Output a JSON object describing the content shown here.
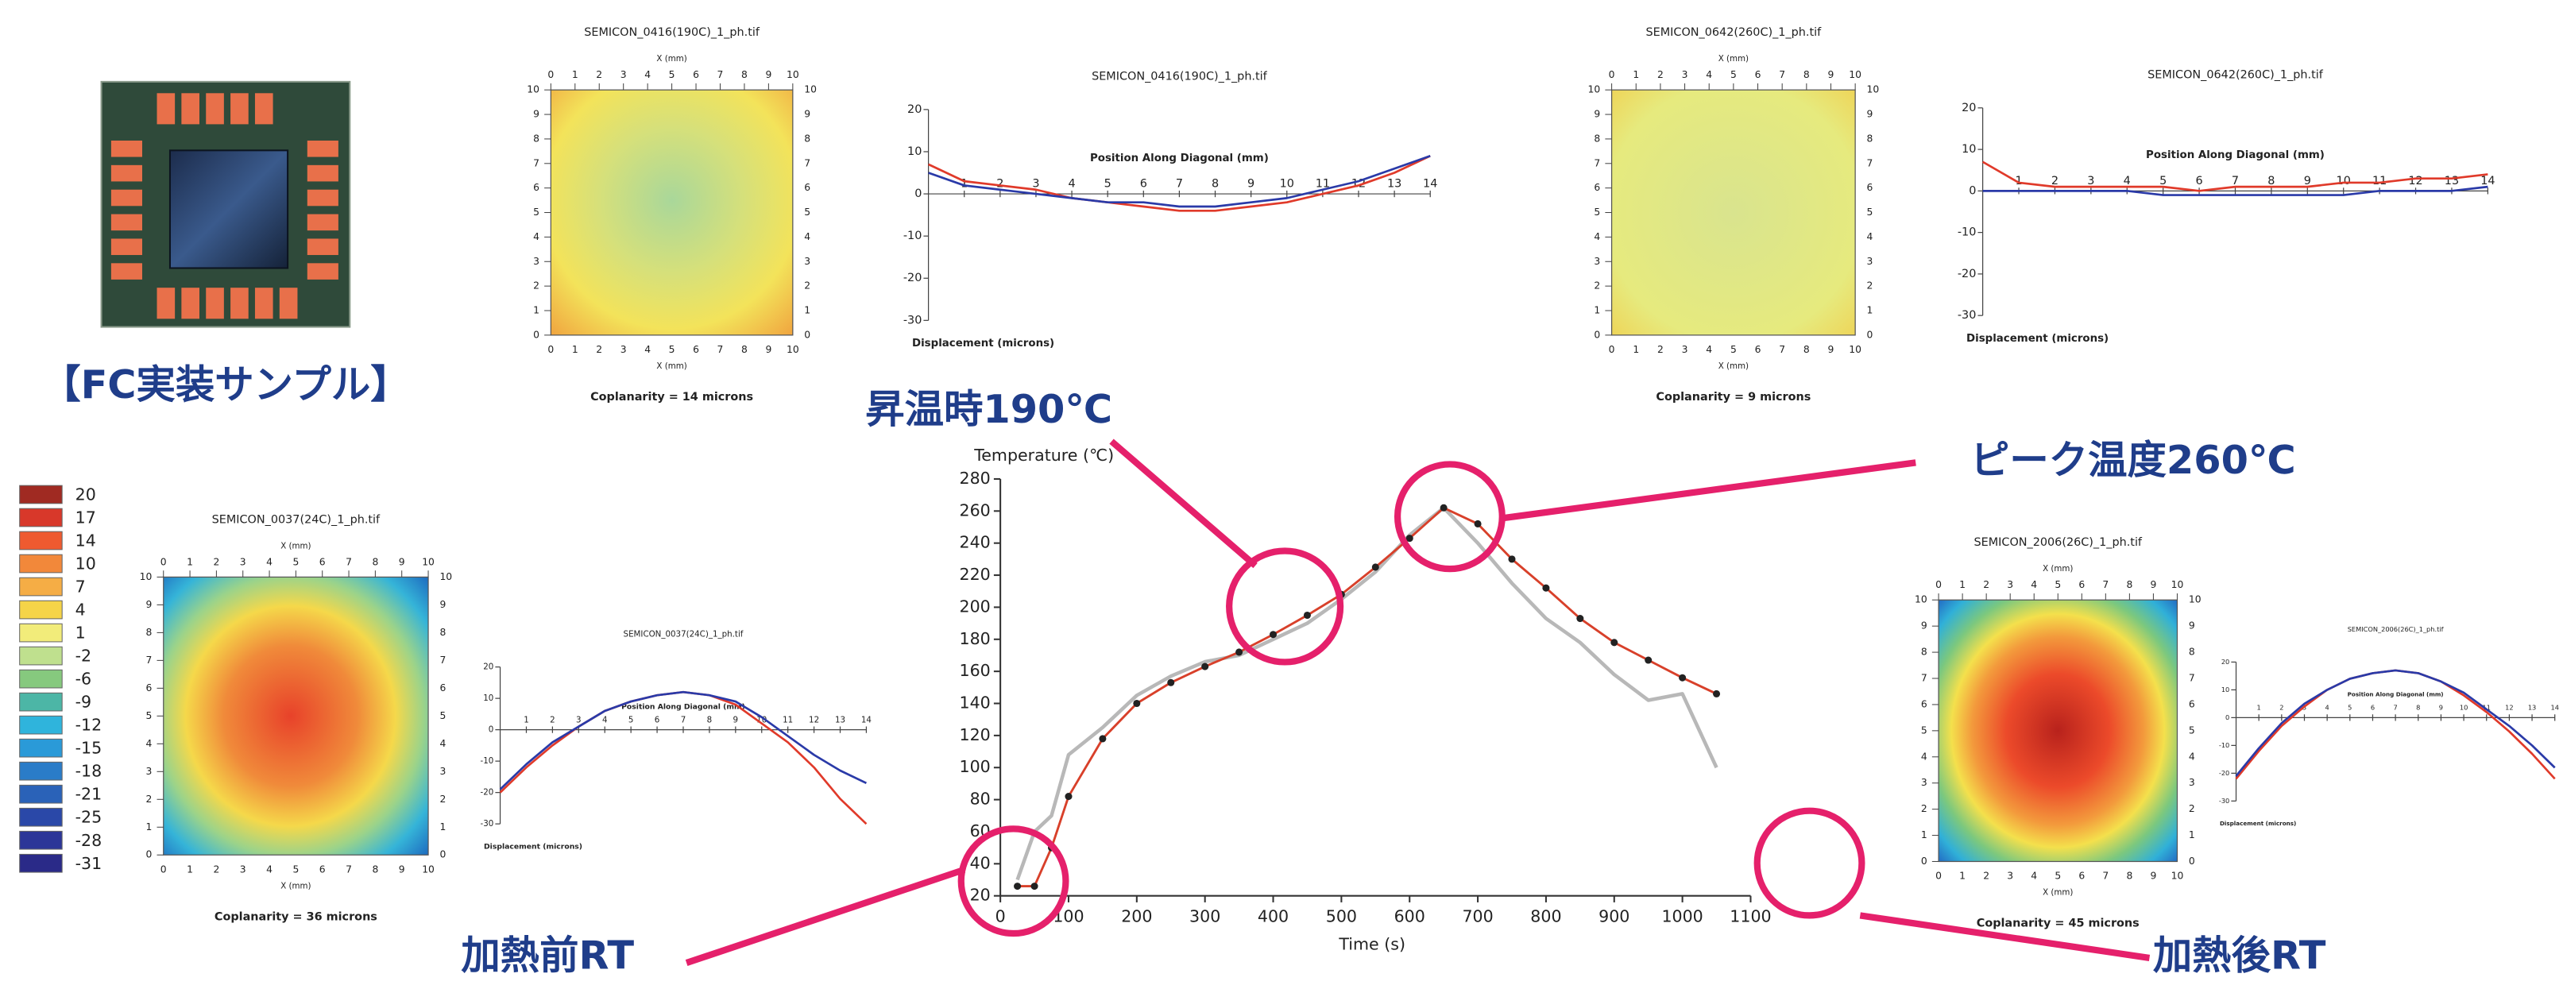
{
  "chart_data": [
    {
      "type": "line",
      "y_label": "Temperature (℃)",
      "x_label": "Time (s)",
      "x": [
        25,
        50,
        75,
        100,
        150,
        200,
        250,
        300,
        350,
        400,
        450,
        500,
        550,
        600,
        650,
        700,
        750,
        800,
        850,
        900,
        950,
        1000,
        1050
      ],
      "xlim": [
        0,
        1100
      ],
      "xticks": [
        0,
        100,
        200,
        300,
        400,
        500,
        600,
        700,
        800,
        900,
        1000,
        1100
      ],
      "ylim": [
        20,
        280
      ],
      "yticks": [
        20,
        40,
        60,
        80,
        100,
        120,
        140,
        160,
        180,
        200,
        220,
        240,
        260,
        280
      ],
      "series": [
        {
          "color": "#b8b8b8",
          "values": [
            30,
            60,
            70,
            108,
            125,
            145,
            157,
            166,
            170,
            180,
            190,
            205,
            222,
            245,
            262,
            240,
            215,
            193,
            178,
            158,
            142,
            146,
            100
          ]
        },
        {
          "color": "#d8402a",
          "markers": true,
          "values": [
            26,
            26,
            50,
            82,
            118,
            140,
            153,
            163,
            172,
            183,
            195,
            208,
            225,
            243,
            262,
            252,
            230,
            212,
            193,
            178,
            167,
            156,
            146
          ]
        }
      ]
    },
    {
      "type": "line",
      "title": "SEMICON_0416(190C)_1_ph.tif",
      "x_label": "Position Along Diagonal (mm)",
      "y_label": "Displacement (microns)",
      "x": [
        0,
        1,
        2,
        3,
        4,
        5,
        6,
        7,
        8,
        9,
        10,
        11,
        12,
        13,
        14
      ],
      "xlim": [
        0,
        14
      ],
      "xticks": [
        1,
        2,
        3,
        4,
        5,
        6,
        7,
        8,
        9,
        10,
        11,
        12,
        13,
        14
      ],
      "ylim": [
        -30,
        20
      ],
      "yticks": [
        20,
        10,
        0,
        -10,
        -20,
        -30
      ],
      "series": [
        {
          "color": "#e03a2a",
          "values": [
            7,
            3,
            2,
            1,
            -1,
            -2,
            -3,
            -4,
            -4,
            -3,
            -2,
            0,
            2,
            5,
            9
          ]
        },
        {
          "color": "#2a3aa8",
          "values": [
            5,
            2,
            1,
            0,
            -1,
            -2,
            -2,
            -3,
            -3,
            -2,
            -1,
            1,
            3,
            6,
            9
          ]
        }
      ]
    },
    {
      "type": "line",
      "title": "SEMICON_0642(260C)_1_ph.tif",
      "x_label": "Position Along Diagonal (mm)",
      "y_label": "Displacement (microns)",
      "x": [
        0,
        1,
        2,
        3,
        4,
        5,
        6,
        7,
        8,
        9,
        10,
        11,
        12,
        13,
        14
      ],
      "xlim": [
        0,
        14
      ],
      "xticks": [
        1,
        2,
        3,
        4,
        5,
        6,
        7,
        8,
        9,
        10,
        11,
        12,
        13,
        14
      ],
      "ylim": [
        -30,
        20
      ],
      "yticks": [
        20,
        10,
        0,
        -10,
        -20,
        -30
      ],
      "series": [
        {
          "color": "#e03a2a",
          "values": [
            7,
            2,
            1,
            1,
            1,
            1,
            0,
            1,
            1,
            1,
            2,
            2,
            3,
            3,
            4
          ]
        },
        {
          "color": "#2a3aa8",
          "values": [
            0,
            0,
            0,
            0,
            0,
            -1,
            -1,
            -1,
            -1,
            -1,
            -1,
            0,
            0,
            0,
            1
          ]
        }
      ]
    },
    {
      "type": "line",
      "title": "SEMICON_0037(24C)_1_ph.tif",
      "x_label": "Position Along Diagonal (mm)",
      "y_label": "Displacement (microns)",
      "x": [
        0,
        1,
        2,
        3,
        4,
        5,
        6,
        7,
        8,
        9,
        10,
        11,
        12,
        13,
        14
      ],
      "xlim": [
        0,
        14
      ],
      "xticks": [
        1,
        2,
        3,
        4,
        5,
        6,
        7,
        8,
        9,
        10,
        11,
        12,
        13,
        14
      ],
      "ylim": [
        -30,
        20
      ],
      "yticks": [
        20,
        10,
        0,
        -10,
        -20,
        -30
      ],
      "series": [
        {
          "color": "#e03a2a",
          "values": [
            -20,
            -12,
            -5,
            1,
            6,
            9,
            11,
            12,
            11,
            8,
            2,
            -4,
            -12,
            -22,
            -30
          ]
        },
        {
          "color": "#2a3aa8",
          "values": [
            -19,
            -11,
            -4,
            1,
            6,
            9,
            11,
            12,
            11,
            9,
            4,
            -2,
            -8,
            -13,
            -17
          ]
        }
      ]
    },
    {
      "type": "line",
      "title": "SEMICON_2006(26C)_1_ph.tif",
      "x_label": "Position Along Diagonal (mm)",
      "y_label": "Displacement (microns)",
      "x": [
        0,
        1,
        2,
        3,
        4,
        5,
        6,
        7,
        8,
        9,
        10,
        11,
        12,
        13,
        14
      ],
      "xlim": [
        0,
        14
      ],
      "xticks": [
        1,
        2,
        3,
        4,
        5,
        6,
        7,
        8,
        9,
        10,
        11,
        12,
        13,
        14
      ],
      "ylim": [
        -30,
        20
      ],
      "yticks": [
        20,
        10,
        0,
        -10,
        -20,
        -30
      ],
      "series": [
        {
          "color": "#e03a2a",
          "values": [
            -22,
            -12,
            -3,
            4,
            10,
            14,
            16,
            17,
            16,
            13,
            8,
            2,
            -5,
            -13,
            -22
          ]
        },
        {
          "color": "#2a3aa8",
          "values": [
            -21,
            -11,
            -2,
            5,
            10,
            14,
            16,
            17,
            16,
            13,
            9,
            3,
            -3,
            -10,
            -18
          ]
        }
      ]
    }
  ],
  "maps": [
    {
      "title": "SEMICON_0416(190C)_1_ph.tif",
      "x_label": "X (mm)",
      "ticks": [
        0,
        1,
        2,
        3,
        4,
        5,
        6,
        7,
        8,
        9,
        10
      ],
      "coplanarity": "Coplanarity = 14 microns"
    },
    {
      "title": "SEMICON_0642(260C)_1_ph.tif",
      "x_label": "X (mm)",
      "ticks": [
        0,
        1,
        2,
        3,
        4,
        5,
        6,
        7,
        8,
        9,
        10
      ],
      "coplanarity": "Coplanarity = 9 microns"
    },
    {
      "title": "SEMICON_0037(24C)_1_ph.tif",
      "x_label": "X (mm)",
      "ticks": [
        0,
        1,
        2,
        3,
        4,
        5,
        6,
        7,
        8,
        9,
        10
      ],
      "coplanarity": "Coplanarity = 36 microns"
    },
    {
      "title": "SEMICON_2006(26C)_1_ph.tif",
      "x_label": "X (mm)",
      "ticks": [
        0,
        1,
        2,
        3,
        4,
        5,
        6,
        7,
        8,
        9,
        10
      ],
      "coplanarity": "Coplanarity = 45 microns"
    }
  ],
  "colorbar": {
    "labels": [
      20,
      17,
      14,
      10,
      7,
      4,
      1,
      -2,
      -6,
      -9,
      -12,
      -15,
      -18,
      -21,
      -25,
      -28,
      -31
    ],
    "colors": [
      "#a02a22",
      "#d8382a",
      "#ee5a30",
      "#f2883a",
      "#f5ad45",
      "#f5d448",
      "#f2ec7a",
      "#bfe08e",
      "#86c97e",
      "#4cb6a6",
      "#2fb4dc",
      "#2a9ad8",
      "#2a7cc8",
      "#2a62b8",
      "#2a48a8",
      "#2c3698",
      "#2a2a88"
    ]
  },
  "annotations": {
    "sample": "【FC実装サンプル】",
    "heating_190": "昇温時190℃",
    "peak_260": "ピーク温度260℃",
    "before_rt": "加熱前RT",
    "after_rt": "加熱後RT"
  }
}
